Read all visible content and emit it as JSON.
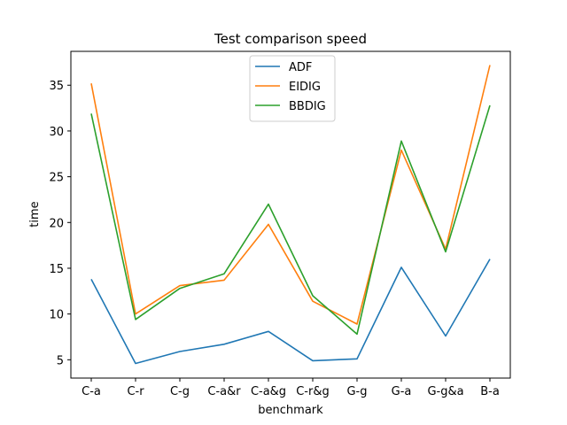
{
  "chart_data": {
    "type": "line",
    "title": "Test comparison speed",
    "xlabel": "benchmark",
    "ylabel": "time",
    "categories": [
      "C-a",
      "C-r",
      "C-g",
      "C-a&r",
      "C-a&g",
      "C-r&g",
      "G-g",
      "G-a",
      "G-g&a",
      "B-a"
    ],
    "ylim": [
      3.0,
      38.7
    ],
    "yticks": [
      5,
      10,
      15,
      20,
      25,
      30,
      35
    ],
    "grid": false,
    "legend_position": "upper center",
    "series": [
      {
        "name": "ADF",
        "color": "#1f77b4",
        "values": [
          13.8,
          4.6,
          5.9,
          6.7,
          8.1,
          4.9,
          5.1,
          15.1,
          7.6,
          16.0
        ]
      },
      {
        "name": "EIDIG",
        "color": "#ff7f0e",
        "values": [
          35.2,
          10.0,
          13.1,
          13.7,
          19.8,
          11.4,
          8.9,
          27.9,
          17.1,
          37.2
        ]
      },
      {
        "name": "BBDIG",
        "color": "#2ca02c",
        "values": [
          31.9,
          9.4,
          12.8,
          14.4,
          22.0,
          12.0,
          7.8,
          28.9,
          16.8,
          32.8
        ]
      }
    ]
  }
}
